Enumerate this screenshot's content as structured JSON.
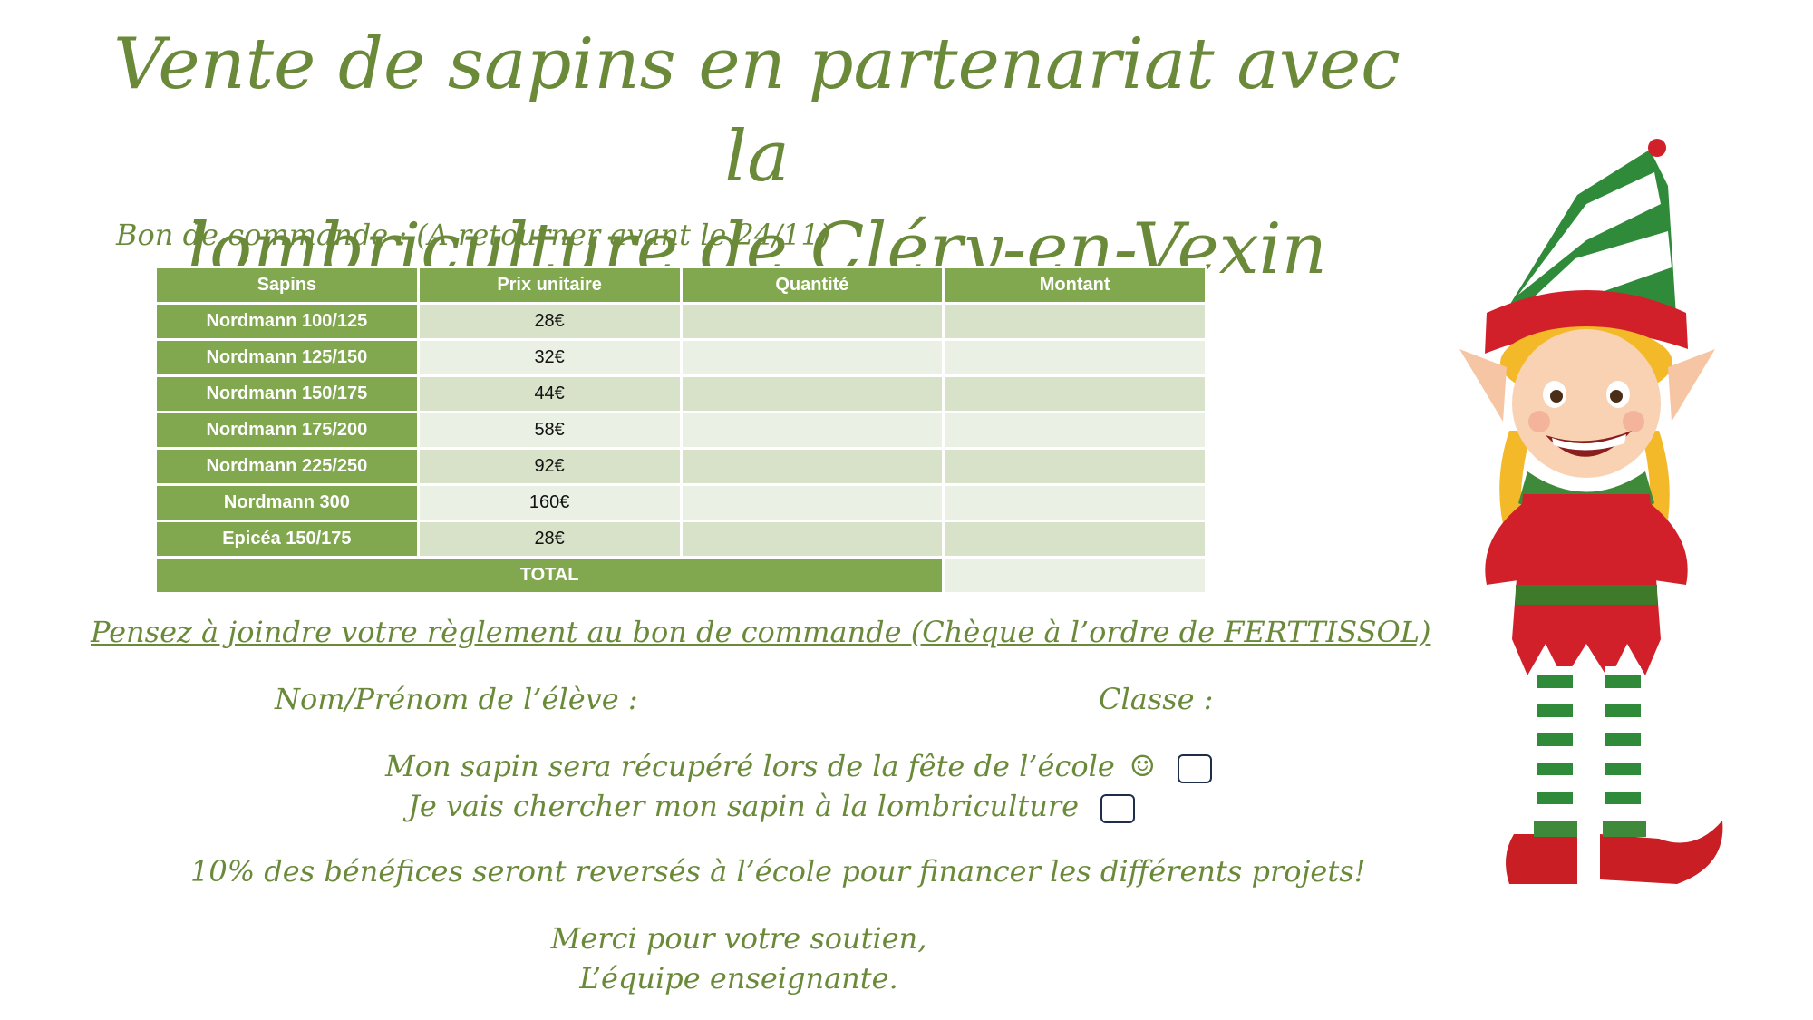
{
  "title": {
    "line1": "Vente de sapins en partenariat avec la",
    "line2": "lombriculture de Cléry-en-Vexin"
  },
  "order_form_label": "Bon de commande : (A retourner avant le 24/11)",
  "table": {
    "headers": [
      "Sapins",
      "Prix unitaire",
      "Quantité",
      "Montant"
    ],
    "rows": [
      {
        "name": "Nordmann 100/125",
        "price": "28€"
      },
      {
        "name": "Nordmann 125/150",
        "price": "32€"
      },
      {
        "name": "Nordmann 150/175",
        "price": "44€"
      },
      {
        "name": "Nordmann 175/200",
        "price": "58€"
      },
      {
        "name": "Nordmann 225/250",
        "price": "92€"
      },
      {
        "name": "Nordmann 300",
        "price": "160€"
      },
      {
        "name": "Epicéa 150/175",
        "price": "28€"
      }
    ],
    "total_label": "TOTAL"
  },
  "payment_note": "Pensez à joindre votre règlement au bon de commande (Chèque à l’ordre de FERTTISSOL)",
  "student_name_label": "Nom/Prénom de l’élève :",
  "class_label": "Classe :",
  "options": {
    "pickup_school": "Mon sapin sera récupéré lors de la fête de l’école",
    "pickup_farm": "Je vais chercher mon sapin à la lombriculture",
    "smiley": "☺"
  },
  "profit_note": "10% des bénéfices seront reversés à l’école pour financer les différents projets!",
  "thanks": {
    "line1": "Merci pour votre soutien,",
    "line2": "L’équipe enseignante."
  },
  "colors": {
    "text_green": "#6a8a3a",
    "table_header": "#82a84f",
    "row_dark": "#d7e2c9",
    "row_light": "#ebf0e4"
  },
  "illustration": "elf-illustration"
}
